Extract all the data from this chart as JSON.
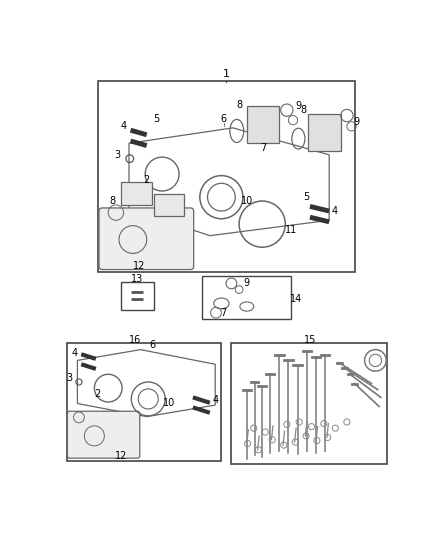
{
  "bg_color": "#ffffff",
  "line_color": "#444444",
  "label_color": "#000000",
  "fig_w": 4.38,
  "fig_h": 5.33,
  "dpi": 100
}
